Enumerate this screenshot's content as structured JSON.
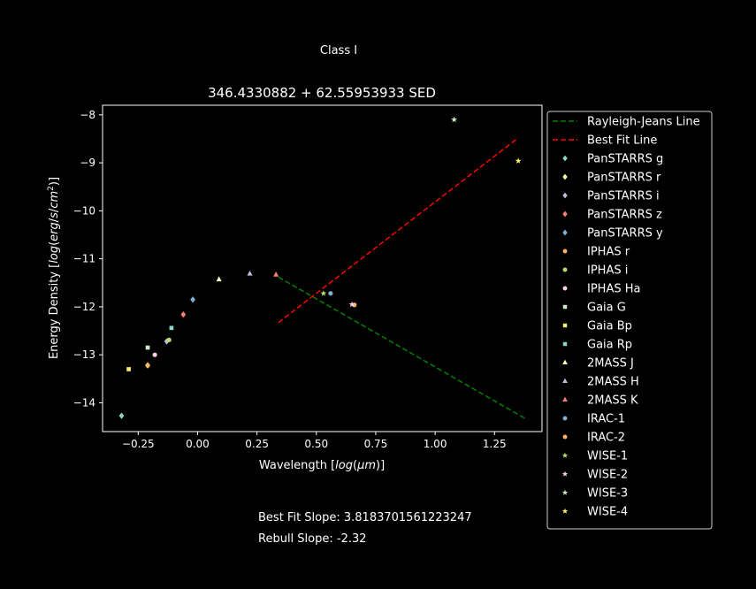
{
  "figure": {
    "suptitle": "Class I",
    "note_slope": "Best Fit Slope: 3.8183701561223247",
    "note_rebull": "Rebull Slope: -2.32"
  },
  "chart_data": {
    "type": "scatter",
    "title": "346.4330882 + 62.55953933 SED",
    "xlabel": "Wavelength [log(μm)]",
    "ylabel": "Energy Density [log(erg/s/cm²)]",
    "xlim": [
      -0.4,
      1.45
    ],
    "ylim": [
      -14.6,
      -7.8
    ],
    "xticks": [
      -0.25,
      0.0,
      0.25,
      0.5,
      0.75,
      1.0,
      1.25
    ],
    "xtick_labels": [
      "−0.25",
      "0.00",
      "0.25",
      "0.50",
      "0.75",
      "1.00",
      "1.25"
    ],
    "yticks": [
      -14,
      -13,
      -12,
      -11,
      -10,
      -9,
      -8
    ],
    "ytick_labels": [
      "−14",
      "−13",
      "−12",
      "−11",
      "−10",
      "−9",
      "−8"
    ],
    "grid": false,
    "legend_position": "outside-right",
    "lines": [
      {
        "name": "Rayleigh-Jeans Line",
        "color": "#008000",
        "dash": "dashed",
        "x": [
          0.34,
          1.38
        ],
        "y": [
          -11.38,
          -14.33
        ]
      },
      {
        "name": "Best Fit Line",
        "color": "#ff0000",
        "dash": "dashed",
        "x": [
          0.34,
          1.35
        ],
        "y": [
          -12.33,
          -8.48
        ]
      }
    ],
    "series": [
      {
        "name": "PanSTARRS g",
        "marker": "diamond",
        "color": "#8dd3c7",
        "x": [
          -0.32
        ],
        "y": [
          -14.27
        ]
      },
      {
        "name": "PanSTARRS r",
        "marker": "diamond",
        "color": "#ffffb3",
        "x": [
          -0.21
        ],
        "y": [
          -13.22
        ]
      },
      {
        "name": "PanSTARRS i",
        "marker": "diamond",
        "color": "#bebada",
        "x": [
          -0.13
        ],
        "y": [
          -12.72
        ]
      },
      {
        "name": "PanSTARRS z",
        "marker": "diamond",
        "color": "#fb8072",
        "x": [
          -0.06
        ],
        "y": [
          -12.16
        ]
      },
      {
        "name": "PanSTARRS y",
        "marker": "diamond",
        "color": "#80b1d3",
        "x": [
          -0.02
        ],
        "y": [
          -11.85
        ]
      },
      {
        "name": "IPHAS r",
        "marker": "circle",
        "color": "#fdb462",
        "x": [
          -0.21
        ],
        "y": [
          -13.22
        ]
      },
      {
        "name": "IPHAS i",
        "marker": "circle",
        "color": "#b3de69",
        "x": [
          -0.12
        ],
        "y": [
          -12.69
        ]
      },
      {
        "name": "IPHAS Ha",
        "marker": "circle",
        "color": "#fccde5",
        "x": [
          -0.18
        ],
        "y": [
          -13.0
        ]
      },
      {
        "name": "Gaia G",
        "marker": "square",
        "color": "#ccebc5",
        "x": [
          -0.21
        ],
        "y": [
          -12.85
        ]
      },
      {
        "name": "Gaia Bp",
        "marker": "square",
        "color": "#ffed6f",
        "x": [
          -0.29
        ],
        "y": [
          -13.3
        ]
      },
      {
        "name": "Gaia Rp",
        "marker": "square",
        "color": "#8dd3c7",
        "x": [
          -0.11
        ],
        "y": [
          -12.44
        ]
      },
      {
        "name": "2MASS J",
        "marker": "triangle",
        "color": "#ffffb3",
        "x": [
          0.09
        ],
        "y": [
          -11.43
        ]
      },
      {
        "name": "2MASS H",
        "marker": "triangle",
        "color": "#bebada",
        "x": [
          0.22
        ],
        "y": [
          -11.31
        ]
      },
      {
        "name": "2MASS K",
        "marker": "triangle",
        "color": "#fb8072",
        "x": [
          0.33
        ],
        "y": [
          -11.33
        ]
      },
      {
        "name": "IRAC-1",
        "marker": "circle",
        "color": "#80b1d3",
        "x": [
          0.56
        ],
        "y": [
          -11.72
        ]
      },
      {
        "name": "IRAC-2",
        "marker": "circle",
        "color": "#fdb462",
        "x": [
          0.66
        ],
        "y": [
          -11.96
        ]
      },
      {
        "name": "WISE-1",
        "marker": "star",
        "color": "#b3de69",
        "x": [
          0.53
        ],
        "y": [
          -11.72
        ]
      },
      {
        "name": "WISE-2",
        "marker": "star",
        "color": "#fccde5",
        "x": [
          0.65
        ],
        "y": [
          -11.95
        ]
      },
      {
        "name": "WISE-3",
        "marker": "star",
        "color": "#ccebc5",
        "x": [
          1.08
        ],
        "y": [
          -8.1
        ]
      },
      {
        "name": "WISE-4",
        "marker": "star",
        "color": "#ffed6f",
        "x": [
          1.35
        ],
        "y": [
          -8.96
        ]
      }
    ]
  }
}
